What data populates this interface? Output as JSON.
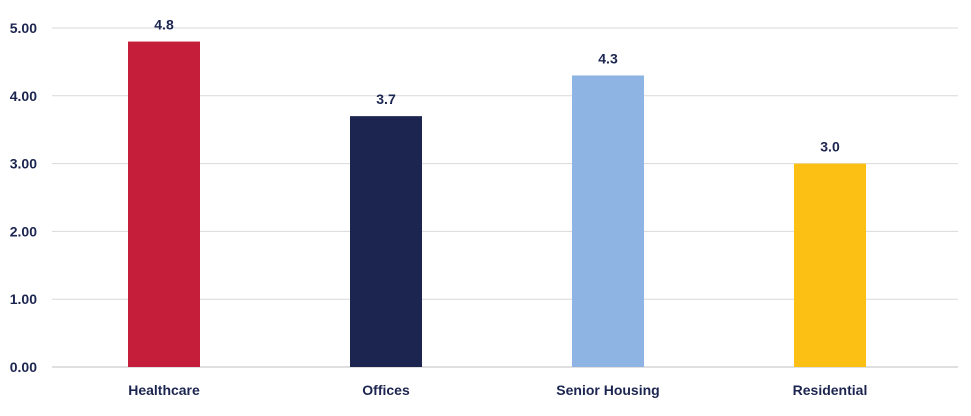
{
  "chart_data": {
    "type": "bar",
    "title": "",
    "xlabel": "",
    "ylabel": "",
    "categories": [
      "Healthcare",
      "Offices",
      "Senior Housing",
      "Residential"
    ],
    "values": [
      4.8,
      3.7,
      4.3,
      3.0
    ],
    "data_labels": [
      "4.8",
      "3.7",
      "4.3",
      "3.0"
    ],
    "bar_colors": [
      "#c41e3a",
      "#1c2550",
      "#8db4e2",
      "#fcbf14"
    ],
    "ylim": [
      0,
      5
    ],
    "yticks": [
      0,
      1,
      2,
      3,
      4,
      5
    ],
    "ytick_labels": [
      "0.00",
      "1.00",
      "2.00",
      "3.00",
      "4.00",
      "5.00"
    ],
    "grid": true,
    "legend": "none",
    "text_color": "#1c2550",
    "grid_color": "#d9d9d9"
  }
}
